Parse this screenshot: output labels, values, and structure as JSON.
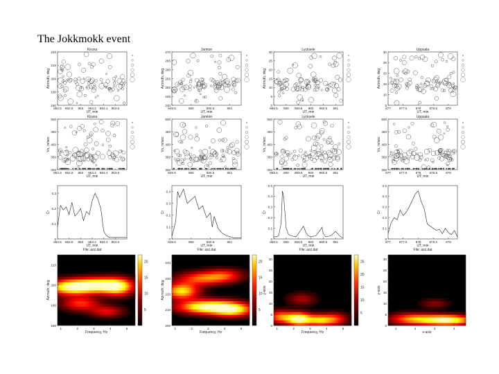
{
  "page": {
    "title": "The Jokkmokk event"
  },
  "stations": [
    "Kiruna",
    "Jamton",
    "Lycksele",
    "Uppsala"
  ],
  "chart_data": [
    {
      "type": "scatter",
      "panel": "azimuth",
      "station": "Kiruna",
      "title": "Kiruna",
      "xlabel": "UT, min",
      "ylabel": "Azimuth, deg",
      "xlim": [
        852.6,
        853.8
      ],
      "ylim": [
        180,
        220
      ],
      "xticks": [
        852.6,
        852.8,
        853,
        853.2,
        853.4,
        853.6
      ],
      "xticklabels": [
        "852.6",
        "852.8",
        "853",
        "853.2",
        "853.4",
        "853.6"
      ],
      "yticks": [
        180,
        190,
        200,
        210,
        220
      ]
    },
    {
      "type": "scatter",
      "panel": "azimuth",
      "station": "Jamton",
      "title": "Jamton",
      "xlabel": "UT, min",
      "ylabel": "Azimuth, deg",
      "xlim": [
        849.5,
        851.3
      ],
      "ylim": [
        240,
        270
      ],
      "xticks": [
        849.5,
        850,
        850.5,
        851
      ],
      "xticklabels": [
        "849.5",
        "850",
        "850.5",
        "851"
      ],
      "yticks": [
        240,
        245,
        250,
        255,
        260,
        265,
        270
      ]
    },
    {
      "type": "scatter",
      "panel": "azimuth",
      "station": "Lycksele",
      "title": "Lycksele",
      "xlabel": "UT, min",
      "ylabel": "Azimuth, deg",
      "xlim": [
        858.5,
        861.3
      ],
      "ylim": [
        0,
        30
      ],
      "xticks": [
        858.5,
        859,
        859.5,
        860,
        860.5,
        861
      ],
      "xticklabels": [
        "858.5",
        "859",
        "859.5",
        "860",
        "860.5",
        "861"
      ],
      "yticks": [
        0,
        5,
        10,
        15,
        20,
        25,
        30
      ]
    },
    {
      "type": "scatter",
      "panel": "azimuth",
      "station": "Uppsala",
      "title": "Uppsala",
      "xlabel": "UT, min",
      "ylabel": "Azimuth, deg",
      "xlim": [
        877,
        879.3
      ],
      "ylim": [
        5,
        30
      ],
      "xticks": [
        877,
        877.5,
        878,
        878.5,
        879
      ],
      "xticklabels": [
        "877",
        "877.5",
        "878",
        "878.5",
        "879"
      ],
      "yticks": [
        5,
        10,
        15,
        20,
        25,
        30
      ]
    },
    {
      "type": "scatter",
      "panel": "velocity",
      "station": "Kiruna",
      "title": "Kiruna",
      "xlabel": "UT, min",
      "ylabel": "Vs, m/sec",
      "xlim": [
        852.6,
        853.8
      ],
      "ylim": [
        300,
        500
      ],
      "xticks": [
        852.6,
        852.8,
        853,
        853.2,
        853.4,
        853.6
      ],
      "xticklabels": [
        "852.6",
        "852.8",
        "853",
        "853.2",
        "853.4",
        "853.6"
      ],
      "yticks": [
        300,
        350,
        400,
        450,
        500
      ]
    },
    {
      "type": "scatter",
      "panel": "velocity",
      "station": "Jamton",
      "title": "Jamton",
      "xlabel": "UT, min",
      "ylabel": "Vs, m/sec",
      "xlim": [
        849.5,
        851.3
      ],
      "ylim": [
        300,
        500
      ],
      "xticks": [
        849.5,
        850,
        850.5,
        851
      ],
      "xticklabels": [
        "849.5",
        "850",
        "850.5",
        "851"
      ],
      "yticks": [
        300,
        350,
        400,
        450,
        500
      ]
    },
    {
      "type": "scatter",
      "panel": "velocity",
      "station": "Lycksele",
      "title": "Lycksele",
      "xlabel": "UT, min",
      "ylabel": "Vs, m/sec",
      "xlim": [
        858.5,
        861.3
      ],
      "ylim": [
        300,
        500
      ],
      "xticks": [
        858.5,
        859,
        859.5,
        860,
        860.5,
        861
      ],
      "xticklabels": [
        "858.5",
        "859",
        "859.5",
        "860",
        "860.5",
        "861"
      ],
      "yticks": [
        300,
        350,
        400,
        450,
        500
      ]
    },
    {
      "type": "scatter",
      "panel": "velocity",
      "station": "Uppsala",
      "title": "Uppsala",
      "xlabel": "UT, min",
      "ylabel": "Vs, m/sec",
      "xlim": [
        877,
        879.3
      ],
      "ylim": [
        300,
        500
      ],
      "xticks": [
        877,
        877.5,
        878,
        878.5,
        879
      ],
      "xticklabels": [
        "877",
        "877.5",
        "878",
        "878.5",
        "879"
      ],
      "yticks": [
        300,
        350,
        400,
        450,
        500
      ]
    },
    {
      "type": "line",
      "panel": "correlation",
      "station": "Kiruna",
      "xlabel": "UT, min",
      "ylabel": "Cr",
      "file_label": "File: azz.dat",
      "xlim": [
        852.6,
        853.8
      ],
      "ylim": [
        0,
        0.35
      ],
      "yticks": [
        0,
        0.1,
        0.2,
        0.3
      ],
      "xticks": [
        852.6,
        852.8,
        853,
        853.2,
        853.4,
        853.6
      ],
      "xticklabels": [
        "852.6",
        "852.8",
        "853",
        "853.2",
        "853.4",
        "853.6"
      ],
      "x": [
        852.6,
        852.65,
        852.7,
        852.75,
        852.8,
        852.85,
        852.9,
        852.95,
        853.0,
        853.05,
        853.1,
        853.15,
        853.2,
        853.25,
        853.3,
        853.35,
        853.4,
        853.45,
        853.5,
        853.55,
        853.6,
        853.65,
        853.7,
        853.75,
        853.8
      ],
      "y": [
        0.08,
        0.22,
        0.19,
        0.21,
        0.16,
        0.24,
        0.15,
        0.17,
        0.2,
        0.12,
        0.18,
        0.16,
        0.25,
        0.3,
        0.26,
        0.2,
        0.05,
        0.02,
        0.01,
        0.01,
        0.01,
        0.01,
        0.01,
        0.01,
        0.01
      ]
    },
    {
      "type": "line",
      "panel": "correlation",
      "station": "Jamton",
      "xlabel": "UT, min",
      "ylabel": "Cr",
      "file_label": "File: azz.dat",
      "xlim": [
        849.5,
        851.3
      ],
      "ylim": [
        0,
        0.45
      ],
      "yticks": [
        0,
        0.1,
        0.2,
        0.3,
        0.4
      ],
      "xticks": [
        849.5,
        850,
        850.5,
        851
      ],
      "xticklabels": [
        "849.5",
        "850",
        "850.5",
        "851"
      ],
      "x": [
        849.5,
        849.6,
        849.65,
        849.7,
        849.8,
        849.9,
        850.0,
        850.1,
        850.2,
        850.3,
        850.4,
        850.5,
        850.55,
        850.6,
        850.7,
        850.8,
        850.9,
        851.0,
        851.1,
        851.2,
        851.3
      ],
      "y": [
        0.02,
        0.15,
        0.4,
        0.35,
        0.42,
        0.3,
        0.33,
        0.36,
        0.25,
        0.28,
        0.18,
        0.22,
        0.1,
        0.19,
        0.09,
        0.05,
        0.03,
        0.02,
        0.01,
        0.01,
        0.01
      ]
    },
    {
      "type": "line",
      "panel": "correlation",
      "station": "Lycksele",
      "xlabel": "UT, min",
      "ylabel": "Cr",
      "file_label": "File: azz.dat",
      "xlim": [
        858.5,
        861.3
      ],
      "ylim": [
        0,
        0.5
      ],
      "yticks": [
        0,
        0.1,
        0.2,
        0.3,
        0.4,
        0.5
      ],
      "xticks": [
        858.5,
        859,
        859.5,
        860,
        860.5,
        861
      ],
      "xticklabels": [
        "858.5",
        "859",
        "859.5",
        "860",
        "860.5",
        "861"
      ],
      "x": [
        858.5,
        858.6,
        858.7,
        858.8,
        858.85,
        858.9,
        859.0,
        859.1,
        859.2,
        859.4,
        859.5,
        859.7,
        859.8,
        859.9,
        860.0,
        860.2,
        860.4,
        860.45,
        860.5,
        860.6,
        860.8,
        861.0,
        861.2,
        861.3
      ],
      "y": [
        0.02,
        0.02,
        0.03,
        0.15,
        0.45,
        0.4,
        0.1,
        0.04,
        0.03,
        0.02,
        0.05,
        0.12,
        0.06,
        0.03,
        0.02,
        0.03,
        0.09,
        0.11,
        0.05,
        0.02,
        0.03,
        0.07,
        0.02,
        0.01
      ]
    },
    {
      "type": "line",
      "panel": "correlation",
      "station": "Uppsala",
      "xlabel": "UT, min",
      "ylabel": "Cr",
      "file_label": "File: azz.dat",
      "xlim": [
        877,
        879.3
      ],
      "ylim": [
        0,
        0.5
      ],
      "yticks": [
        0,
        0.1,
        0.2,
        0.3,
        0.4,
        0.5
      ],
      "xticks": [
        877,
        877.5,
        878,
        878.5,
        879
      ],
      "xticklabels": [
        "877",
        "877.5",
        "878",
        "878.5",
        "879"
      ],
      "x": [
        877,
        877.1,
        877.2,
        877.3,
        877.4,
        877.5,
        877.6,
        877.7,
        877.8,
        877.9,
        878.0,
        878.1,
        878.2,
        878.3,
        878.4,
        878.5,
        878.6,
        878.7,
        878.8,
        878.9,
        879.0,
        879.1,
        879.2,
        879.3
      ],
      "y": [
        0.05,
        0.15,
        0.2,
        0.18,
        0.27,
        0.22,
        0.25,
        0.3,
        0.36,
        0.42,
        0.45,
        0.35,
        0.28,
        0.14,
        0.12,
        0.1,
        0.08,
        0.09,
        0.05,
        0.1,
        0.06,
        0.04,
        0.08,
        0.02
      ]
    },
    {
      "type": "heatmap",
      "panel": "spectrum",
      "station": "Kiruna",
      "xlabel": "Frequency, Hz",
      "ylabel": "Azimuth, deg",
      "xlim": [
        0.8,
        5.5
      ],
      "ylim": [
        180,
        215
      ],
      "xticks": [
        1,
        2,
        3,
        4,
        5
      ],
      "yticks": [
        180,
        190,
        200,
        210
      ],
      "colorbar_ticks": [
        5,
        10,
        15,
        20
      ],
      "blobs": [
        {
          "x": 3.3,
          "y": 200,
          "sx": 1.1,
          "sy": 2.5,
          "v": 1.0
        },
        {
          "x": 1.5,
          "y": 199,
          "sx": 0.9,
          "sy": 2.5,
          "v": 0.8
        },
        {
          "x": 4.5,
          "y": 199,
          "sx": 0.6,
          "sy": 3.0,
          "v": 0.55
        },
        {
          "x": 2.2,
          "y": 191,
          "sx": 0.8,
          "sy": 2.5,
          "v": 0.45
        },
        {
          "x": 3.8,
          "y": 187,
          "sx": 0.7,
          "sy": 2.0,
          "v": 0.35
        }
      ]
    },
    {
      "type": "heatmap",
      "panel": "spectrum",
      "station": "Jamton",
      "xlabel": "Frequency, Hz",
      "ylabel": "Azimuth, deg",
      "xlim": [
        0.8,
        5.5
      ],
      "ylim": [
        200,
        245
      ],
      "xticks": [
        1,
        2,
        3,
        4,
        5
      ],
      "yticks": [
        200,
        210,
        220,
        230,
        240
      ],
      "colorbar_ticks": [
        5,
        10,
        15,
        20
      ],
      "blobs": [
        {
          "x": 3.0,
          "y": 212,
          "sx": 1.2,
          "sy": 3.0,
          "v": 1.0
        },
        {
          "x": 4.5,
          "y": 210,
          "sx": 0.8,
          "sy": 3.0,
          "v": 0.7
        },
        {
          "x": 1.4,
          "y": 222,
          "sx": 0.7,
          "sy": 3.5,
          "v": 0.75
        },
        {
          "x": 2.6,
          "y": 230,
          "sx": 1.0,
          "sy": 3.0,
          "v": 0.5
        },
        {
          "x": 4.0,
          "y": 232,
          "sx": 0.8,
          "sy": 3.0,
          "v": 0.4
        }
      ]
    },
    {
      "type": "heatmap",
      "panel": "spectrum",
      "station": "Lycksele",
      "xlabel": "Frequency, Hz",
      "ylabel": "y-axis",
      "xlim": [
        0.8,
        5.5
      ],
      "ylim": [
        0,
        32
      ],
      "xticks": [
        1,
        2,
        3,
        4,
        5
      ],
      "yticks": [
        0,
        5,
        10,
        15,
        20,
        25,
        30
      ],
      "colorbar_ticks": [
        5,
        10,
        15,
        20,
        25
      ],
      "blobs": [
        {
          "x": 2.3,
          "y": 3,
          "sx": 0.5,
          "sy": 2.0,
          "v": 1.0
        },
        {
          "x": 3.6,
          "y": 2.5,
          "sx": 0.6,
          "sy": 1.8,
          "v": 0.7
        },
        {
          "x": 1.2,
          "y": 4,
          "sx": 0.5,
          "sy": 2.0,
          "v": 0.55
        },
        {
          "x": 4.6,
          "y": 3,
          "sx": 0.5,
          "sy": 2.0,
          "v": 0.35
        },
        {
          "x": 2.5,
          "y": 12,
          "sx": 0.6,
          "sy": 2.0,
          "v": 0.25
        }
      ]
    },
    {
      "type": "heatmap",
      "panel": "spectrum",
      "station": "Uppsala",
      "xlabel": "x-axis",
      "ylabel": "y-axis",
      "xlim": [
        0.6,
        4.6
      ],
      "ylim": [
        0,
        32
      ],
      "xticks": [
        1,
        2,
        3,
        4
      ],
      "yticks": [
        0,
        5,
        10,
        15,
        20,
        25,
        30
      ],
      "colorbar_ticks": [],
      "blobs": [
        {
          "x": 3.6,
          "y": 2.5,
          "sx": 0.9,
          "sy": 1.6,
          "v": 1.0
        },
        {
          "x": 1.8,
          "y": 3,
          "sx": 0.8,
          "sy": 1.8,
          "v": 0.55
        },
        {
          "x": 3.0,
          "y": 10,
          "sx": 0.5,
          "sy": 1.5,
          "v": 0.2
        }
      ]
    }
  ]
}
